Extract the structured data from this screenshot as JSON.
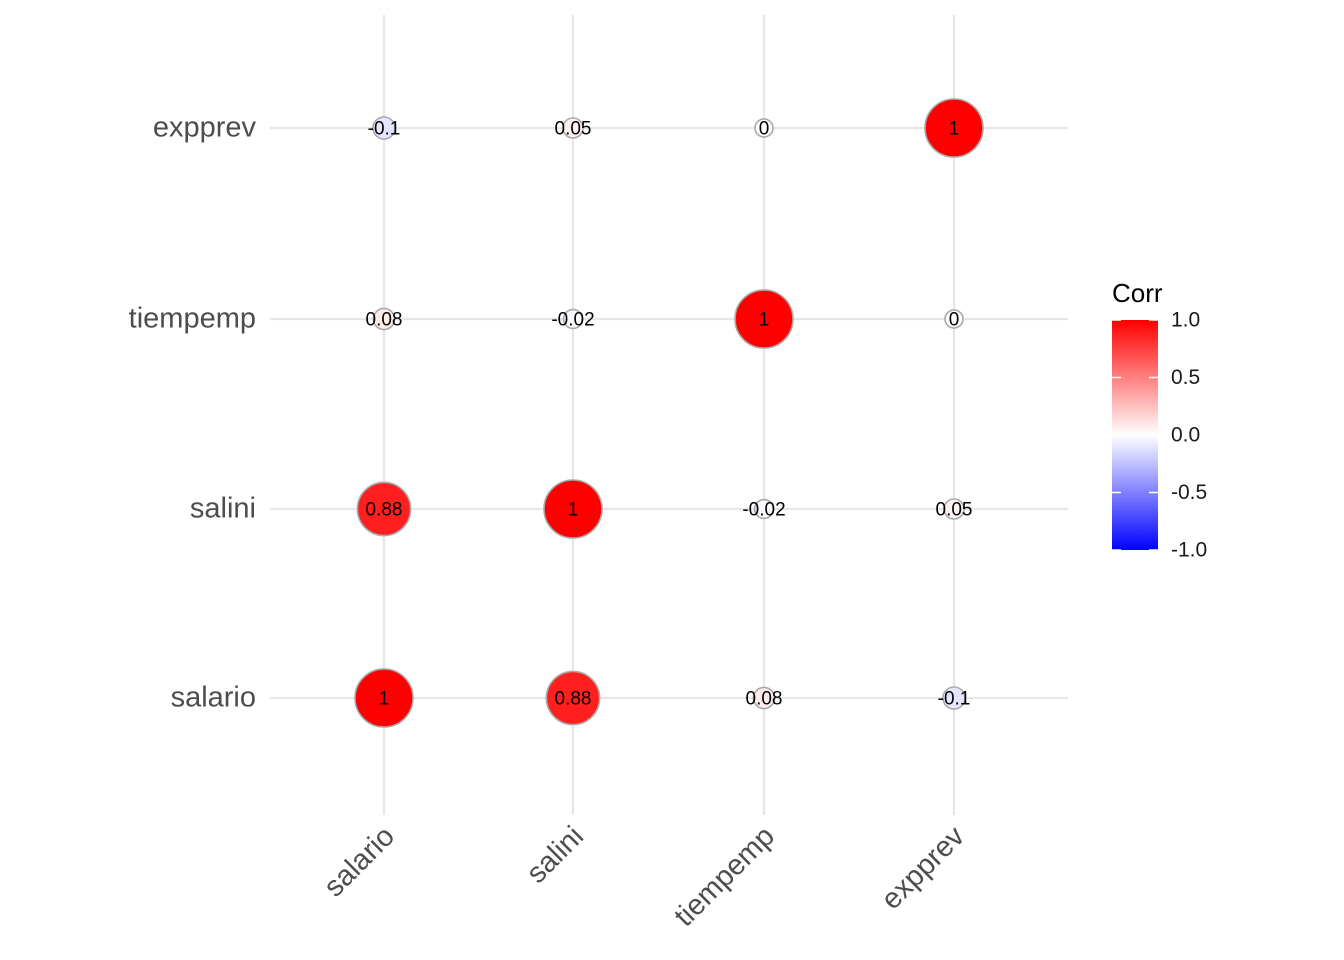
{
  "chart_data": {
    "type": "heatmap",
    "variables": [
      "salario",
      "salini",
      "tiempemp",
      "expprev"
    ],
    "matrix": [
      [
        1,
        0.88,
        0.08,
        -0.1
      ],
      [
        0.88,
        1,
        -0.02,
        0.05
      ],
      [
        0.08,
        -0.02,
        1,
        0
      ],
      [
        -0.1,
        0.05,
        0,
        1
      ]
    ],
    "value_labels": [
      [
        "1",
        "0.88",
        "0.08",
        "-0.1"
      ],
      [
        "0.88",
        "1",
        "-0.02",
        "0.05"
      ],
      [
        "0.08",
        "-0.02",
        "1",
        "0"
      ],
      [
        "-0.1",
        "0.05",
        "0",
        "1"
      ]
    ],
    "legend": {
      "title": "Corr",
      "ticks": [
        "1.0",
        "0.5",
        "0.0",
        "-0.5",
        "-1.0"
      ],
      "range": [
        -1,
        1
      ],
      "placement": "right"
    },
    "colors": {
      "low": "#0000ff",
      "mid": "#ffffff",
      "high": "#ff0000"
    },
    "grid": true
  }
}
